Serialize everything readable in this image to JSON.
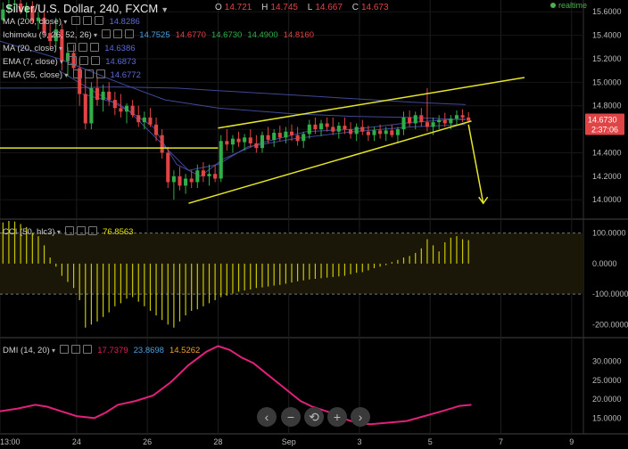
{
  "header": {
    "symbol": "Silver/U.S. Dollar, 240, FXCM",
    "ohlc": [
      {
        "k": "O",
        "v": "14.721"
      },
      {
        "k": "H",
        "v": "14.745"
      },
      {
        "k": "L",
        "v": "14.667"
      },
      {
        "k": "C",
        "v": "14.673"
      }
    ],
    "realtime": "realtime"
  },
  "indicators": [
    {
      "label": "MA (200, close)",
      "values": [
        {
          "v": "14.8286",
          "c": "#5c6ad8"
        }
      ]
    },
    {
      "label": "Ichimoku (9, 26, 52, 26)",
      "values": [
        {
          "v": "14.7525",
          "c": "#4aa0e0"
        },
        {
          "v": "14.6770",
          "c": "#e04444"
        },
        {
          "v": "14.6730",
          "c": "#2fae4a"
        },
        {
          "v": "14.4900",
          "c": "#2fae4a"
        },
        {
          "v": "14.8160",
          "c": "#e04444"
        }
      ]
    },
    {
      "label": "MA (20, close)",
      "values": [
        {
          "v": "14.6386",
          "c": "#5c6ad8"
        }
      ]
    },
    {
      "label": "EMA (7, close)",
      "values": [
        {
          "v": "14.6873",
          "c": "#5c6ad8"
        }
      ]
    },
    {
      "label": "EMA (55, close)",
      "values": [
        {
          "v": "14.6772",
          "c": "#5c6ad8"
        }
      ]
    }
  ],
  "price_badges": {
    "price": "14.6730",
    "time": "2:37:06"
  },
  "cci": {
    "label": "CCI (50, hlc3)",
    "value": "76.8563"
  },
  "dmi": {
    "label": "DMI (14, 20)",
    "values": [
      {
        "v": "17.7379",
        "c": "#e0205c"
      },
      {
        "v": "23.8698",
        "c": "#4aa0e0"
      },
      {
        "v": "14.5262",
        "c": "#f0a030"
      }
    ]
  },
  "zoom_controls": [
    "‹",
    "−",
    "⟲",
    "+",
    "›"
  ],
  "colors": {
    "up": "#2fae4a",
    "down": "#e04444",
    "trendline": "#e6e628",
    "cci": "#c8c800",
    "dmi": "#e0207a",
    "ma": "#4a55b0",
    "accent": "#e04444"
  },
  "chart_data": [
    {
      "type": "candlestick",
      "title": "Silver/U.S. Dollar, 240, FXCM",
      "ylim": [
        13.85,
        15.7
      ],
      "y_ticks": [
        "15.6000",
        "15.4000",
        "15.2000",
        "15.0000",
        "14.8000",
        "14.6000",
        "14.4000",
        "14.2000",
        "14.0000"
      ],
      "x_ticks": [
        "13:00",
        "24",
        "26",
        "28",
        "Sep",
        "3",
        "5",
        "7",
        "9"
      ],
      "x_tick_units": [
        0,
        13,
        25,
        37,
        49,
        61,
        73,
        85,
        97
      ],
      "x_range": [
        0,
        99
      ],
      "candles": [
        [
          0,
          15.53,
          15.68,
          15.52,
          15.62
        ],
        [
          1,
          15.62,
          15.7,
          15.58,
          15.66
        ],
        [
          2,
          15.66,
          15.7,
          15.6,
          15.67
        ],
        [
          3,
          15.67,
          15.7,
          15.58,
          15.6
        ],
        [
          4,
          15.6,
          15.68,
          15.55,
          15.65
        ],
        [
          5,
          15.65,
          15.69,
          15.5,
          15.52
        ],
        [
          6,
          15.52,
          15.6,
          15.45,
          15.55
        ],
        [
          7,
          15.55,
          15.62,
          15.4,
          15.42
        ],
        [
          8,
          15.42,
          15.5,
          15.3,
          15.35
        ],
        [
          9,
          15.35,
          15.55,
          15.3,
          15.45
        ],
        [
          10,
          15.45,
          15.5,
          15.1,
          15.18
        ],
        [
          11,
          15.18,
          15.3,
          15.05,
          15.25
        ],
        [
          12,
          15.25,
          15.32,
          15.08,
          15.12
        ],
        [
          13,
          15.12,
          15.2,
          14.8,
          14.9
        ],
        [
          14,
          14.9,
          15.05,
          14.6,
          14.65
        ],
        [
          15,
          14.65,
          15.0,
          14.6,
          14.95
        ],
        [
          16,
          14.95,
          15.05,
          14.8,
          14.85
        ],
        [
          17,
          14.85,
          14.98,
          14.75,
          14.92
        ],
        [
          18,
          14.92,
          15.0,
          14.8,
          14.85
        ],
        [
          19,
          14.85,
          14.92,
          14.72,
          14.78
        ],
        [
          20,
          14.78,
          14.9,
          14.7,
          14.75
        ],
        [
          21,
          14.75,
          14.82,
          14.65,
          14.8
        ],
        [
          22,
          14.8,
          14.85,
          14.7,
          14.72
        ],
        [
          23,
          14.72,
          14.8,
          14.62,
          14.66
        ],
        [
          24,
          14.66,
          14.75,
          14.6,
          14.7
        ],
        [
          25,
          14.7,
          14.78,
          14.62,
          14.64
        ],
        [
          26,
          14.64,
          14.7,
          14.5,
          14.55
        ],
        [
          27,
          14.55,
          14.6,
          14.35,
          14.4
        ],
        [
          28,
          14.4,
          14.45,
          14.1,
          14.15
        ],
        [
          29,
          14.15,
          14.25,
          14.0,
          14.2
        ],
        [
          30,
          14.2,
          14.28,
          14.08,
          14.12
        ],
        [
          31,
          14.12,
          14.22,
          14.05,
          14.18
        ],
        [
          32,
          14.18,
          14.25,
          14.1,
          14.15
        ],
        [
          33,
          14.15,
          14.3,
          14.1,
          14.25
        ],
        [
          34,
          14.25,
          14.32,
          14.15,
          14.2
        ],
        [
          35,
          14.2,
          14.3,
          14.12,
          14.22
        ],
        [
          36,
          14.22,
          14.3,
          14.15,
          14.18
        ],
        [
          37,
          14.18,
          14.55,
          14.15,
          14.5
        ],
        [
          38,
          14.5,
          14.6,
          14.42,
          14.47
        ],
        [
          39,
          14.47,
          14.55,
          14.4,
          14.52
        ],
        [
          40,
          14.52,
          14.58,
          14.45,
          14.49
        ],
        [
          41,
          14.49,
          14.56,
          14.42,
          14.53
        ],
        [
          42,
          14.53,
          14.6,
          14.45,
          14.48
        ],
        [
          43,
          14.48,
          14.55,
          14.4,
          14.44
        ],
        [
          44,
          14.44,
          14.58,
          14.4,
          14.55
        ],
        [
          45,
          14.55,
          14.62,
          14.48,
          14.51
        ],
        [
          46,
          14.51,
          14.6,
          14.45,
          14.57
        ],
        [
          47,
          14.57,
          14.63,
          14.5,
          14.53
        ],
        [
          48,
          14.53,
          14.62,
          14.48,
          14.58
        ],
        [
          49,
          14.58,
          14.64,
          14.5,
          14.55
        ],
        [
          50,
          14.55,
          14.62,
          14.46,
          14.5
        ],
        [
          51,
          14.5,
          14.58,
          14.44,
          14.56
        ],
        [
          52,
          14.56,
          14.68,
          14.52,
          14.64
        ],
        [
          53,
          14.64,
          14.7,
          14.56,
          14.6
        ],
        [
          54,
          14.6,
          14.68,
          14.54,
          14.65
        ],
        [
          55,
          14.65,
          14.7,
          14.58,
          14.62
        ],
        [
          56,
          14.62,
          14.7,
          14.55,
          14.58
        ],
        [
          57,
          14.58,
          14.66,
          14.52,
          14.63
        ],
        [
          58,
          14.63,
          14.7,
          14.56,
          14.6
        ],
        [
          59,
          14.6,
          14.66,
          14.52,
          14.56
        ],
        [
          60,
          14.56,
          14.65,
          14.5,
          14.62
        ],
        [
          61,
          14.62,
          14.68,
          14.55,
          14.58
        ],
        [
          62,
          14.58,
          14.63,
          14.5,
          14.55
        ],
        [
          63,
          14.55,
          14.62,
          14.5,
          14.59
        ],
        [
          64,
          14.59,
          14.64,
          14.52,
          14.56
        ],
        [
          65,
          14.56,
          14.62,
          14.5,
          14.59
        ],
        [
          66,
          14.59,
          14.64,
          14.53,
          14.55
        ],
        [
          67,
          14.55,
          14.62,
          14.48,
          14.6
        ],
        [
          68,
          14.6,
          14.75,
          14.55,
          14.7
        ],
        [
          69,
          14.7,
          14.76,
          14.62,
          14.65
        ],
        [
          70,
          14.65,
          14.75,
          14.6,
          14.72
        ],
        [
          71,
          14.72,
          14.78,
          14.62,
          14.66
        ],
        [
          72,
          14.66,
          14.95,
          14.58,
          14.62
        ],
        [
          73,
          14.62,
          14.7,
          14.55,
          14.66
        ],
        [
          74,
          14.66,
          14.72,
          14.6,
          14.68
        ],
        [
          75,
          14.68,
          14.74,
          14.62,
          14.65
        ],
        [
          76,
          14.65,
          14.72,
          14.6,
          14.69
        ],
        [
          77,
          14.69,
          14.76,
          14.64,
          14.72
        ],
        [
          78,
          14.72,
          14.77,
          14.66,
          14.7
        ],
        [
          79,
          14.7,
          14.745,
          14.667,
          14.673
        ]
      ],
      "trendlines": [
        {
          "from": [
            37,
            14.61
          ],
          "to": [
            89,
            15.04
          ]
        },
        {
          "from": [
            32,
            13.97
          ],
          "to": [
            80,
            14.67
          ]
        },
        {
          "from": [
            0,
            14.44
          ],
          "to": [
            37,
            14.44
          ]
        },
        {
          "from": [
            79.5,
            14.64
          ],
          "to": [
            82,
            13.97
          ],
          "arrow": true
        }
      ],
      "moving_averages": [
        [
          [
            0,
            14.95
          ],
          [
            10,
            14.95
          ],
          [
            20,
            14.96
          ],
          [
            30,
            14.95
          ],
          [
            40,
            14.92
          ],
          [
            50,
            14.89
          ],
          [
            60,
            14.86
          ],
          [
            70,
            14.83
          ],
          [
            79,
            14.81
          ]
        ],
        [
          [
            0,
            15.35
          ],
          [
            10,
            15.2
          ],
          [
            20,
            15.0
          ],
          [
            28,
            14.85
          ],
          [
            37,
            14.78
          ],
          [
            50,
            14.73
          ],
          [
            60,
            14.71
          ],
          [
            70,
            14.7
          ],
          [
            79,
            14.68
          ]
        ],
        [
          [
            10,
            15.1
          ],
          [
            16,
            14.92
          ],
          [
            22,
            14.75
          ],
          [
            28,
            14.45
          ],
          [
            32,
            14.25
          ],
          [
            37,
            14.3
          ],
          [
            42,
            14.45
          ],
          [
            50,
            14.52
          ],
          [
            60,
            14.58
          ],
          [
            70,
            14.62
          ],
          [
            79,
            14.64
          ]
        ],
        [
          [
            14,
            14.9
          ],
          [
            20,
            14.82
          ],
          [
            26,
            14.62
          ],
          [
            30,
            14.3
          ],
          [
            34,
            14.2
          ],
          [
            38,
            14.35
          ],
          [
            44,
            14.48
          ],
          [
            52,
            14.58
          ],
          [
            60,
            14.6
          ],
          [
            70,
            14.66
          ],
          [
            79,
            14.69
          ]
        ]
      ]
    },
    {
      "type": "bar",
      "title": "CCI (50, hlc3)",
      "ylim": [
        -240,
        140
      ],
      "y_ticks": [
        "100.0000",
        "0.0000",
        "-100.0000",
        "-200.0000"
      ],
      "levels": [
        100,
        -100
      ],
      "values": [
        135,
        140,
        138,
        130,
        120,
        100,
        90,
        60,
        20,
        -10,
        -40,
        -60,
        -80,
        -120,
        -210,
        -200,
        -190,
        -175,
        -160,
        -140,
        -130,
        -115,
        -110,
        -125,
        -140,
        -155,
        -170,
        -185,
        -200,
        -210,
        -190,
        -170,
        -155,
        -150,
        -140,
        -130,
        -120,
        -110,
        -105,
        -98,
        -92,
        -88,
        -85,
        -80,
        -78,
        -75,
        -72,
        -70,
        -66,
        -62,
        -58,
        -55,
        -52,
        -50,
        -48,
        -46,
        -44,
        -42,
        -40,
        -35,
        -30,
        -28,
        -22,
        -15,
        -10,
        -5,
        5,
        12,
        20,
        25,
        35,
        50,
        80,
        60,
        40,
        70,
        85,
        90,
        80,
        77
      ]
    },
    {
      "type": "line",
      "title": "DMI (14, 20)",
      "ylim": [
        12,
        36
      ],
      "y_ticks": [
        "30.0000",
        "25.0000",
        "20.0000",
        "15.0000"
      ],
      "series": [
        {
          "x": [
            0,
            3,
            6,
            8,
            10,
            13,
            16,
            18,
            20,
            23,
            26,
            29,
            32,
            35,
            37,
            39,
            41,
            43,
            45,
            47,
            49,
            51,
            53,
            55,
            57,
            59,
            61,
            63,
            66,
            69,
            72,
            75,
            78,
            80
          ],
          "values": [
            16.8,
            17.5,
            18.5,
            18.0,
            17.0,
            15.5,
            15.0,
            16.5,
            18.5,
            19.5,
            21.0,
            24.5,
            29.0,
            32.5,
            34.0,
            33.0,
            31.0,
            29.5,
            27.0,
            24.5,
            22.0,
            19.5,
            18.0,
            17.0,
            16.0,
            14.5,
            13.5,
            13.4,
            13.8,
            14.2,
            15.5,
            16.8,
            18.2,
            18.5
          ]
        }
      ]
    }
  ]
}
